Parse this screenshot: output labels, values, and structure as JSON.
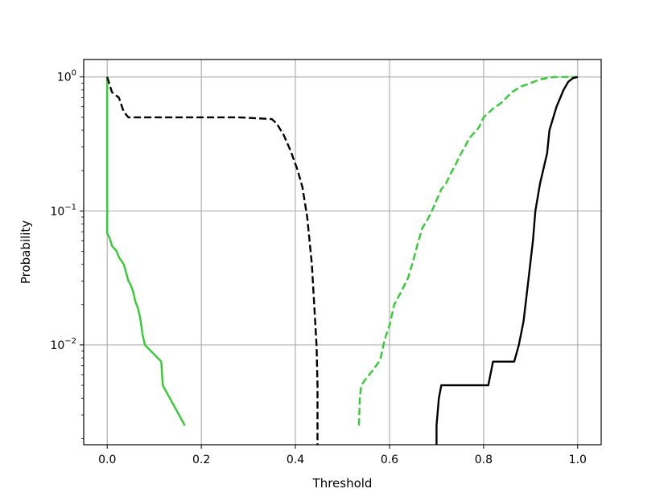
{
  "chart_data": {
    "type": "line",
    "title": "",
    "xlabel": "Threshold",
    "ylabel": "Probability",
    "xlim": [
      -0.05,
      1.05
    ],
    "ylim": [
      0.0018,
      1.35
    ],
    "yscale": "log",
    "grid": true,
    "legend": "none",
    "x_ticks": [
      {
        "value": 0.0,
        "label": "0.0"
      },
      {
        "value": 0.2,
        "label": "0.2"
      },
      {
        "value": 0.4,
        "label": "0.4"
      },
      {
        "value": 0.6,
        "label": "0.6"
      },
      {
        "value": 0.8,
        "label": "0.8"
      },
      {
        "value": 1.0,
        "label": "1.0"
      }
    ],
    "y_ticks": [
      {
        "value": 1,
        "base": "10",
        "exp": "0"
      },
      {
        "value": 0.1,
        "base": "10",
        "exp": "−1"
      },
      {
        "value": 0.01,
        "base": "10",
        "exp": "−2"
      }
    ],
    "series": [
      {
        "color": "#33cc33",
        "style": "solid",
        "points": [
          [
            0.0,
            1.0
          ],
          [
            0.0,
            0.068
          ],
          [
            0.005,
            0.063
          ],
          [
            0.01,
            0.055
          ],
          [
            0.02,
            0.05
          ],
          [
            0.025,
            0.045
          ],
          [
            0.035,
            0.04
          ],
          [
            0.04,
            0.035
          ],
          [
            0.045,
            0.03
          ],
          [
            0.05,
            0.028
          ],
          [
            0.055,
            0.025
          ],
          [
            0.06,
            0.021
          ],
          [
            0.065,
            0.019
          ],
          [
            0.07,
            0.016
          ],
          [
            0.075,
            0.012
          ],
          [
            0.08,
            0.01
          ],
          [
            0.115,
            0.0075
          ],
          [
            0.118,
            0.005
          ],
          [
            0.165,
            0.0025
          ]
        ]
      },
      {
        "color": "#000000",
        "style": "dashed",
        "points": [
          [
            0.0,
            1.0
          ],
          [
            0.01,
            0.77
          ],
          [
            0.025,
            0.7
          ],
          [
            0.035,
            0.55
          ],
          [
            0.045,
            0.5
          ],
          [
            0.1,
            0.5
          ],
          [
            0.2,
            0.5
          ],
          [
            0.28,
            0.5
          ],
          [
            0.35,
            0.485
          ],
          [
            0.36,
            0.45
          ],
          [
            0.375,
            0.37
          ],
          [
            0.39,
            0.28
          ],
          [
            0.405,
            0.2
          ],
          [
            0.415,
            0.15
          ],
          [
            0.425,
            0.09
          ],
          [
            0.435,
            0.04
          ],
          [
            0.44,
            0.02
          ],
          [
            0.445,
            0.01
          ],
          [
            0.447,
            0.005
          ],
          [
            0.447,
            0.0018
          ]
        ]
      },
      {
        "color": "#33cc33",
        "style": "dashed",
        "points": [
          [
            0.535,
            0.0025
          ],
          [
            0.537,
            0.004
          ],
          [
            0.54,
            0.005
          ],
          [
            0.55,
            0.0056
          ],
          [
            0.565,
            0.0065
          ],
          [
            0.58,
            0.0077
          ],
          [
            0.59,
            0.011
          ],
          [
            0.6,
            0.014
          ],
          [
            0.61,
            0.02
          ],
          [
            0.625,
            0.025
          ],
          [
            0.64,
            0.032
          ],
          [
            0.65,
            0.042
          ],
          [
            0.66,
            0.057
          ],
          [
            0.67,
            0.075
          ],
          [
            0.68,
            0.085
          ],
          [
            0.69,
            0.1
          ],
          [
            0.7,
            0.12
          ],
          [
            0.71,
            0.145
          ],
          [
            0.72,
            0.16
          ],
          [
            0.73,
            0.19
          ],
          [
            0.74,
            0.22
          ],
          [
            0.75,
            0.26
          ],
          [
            0.76,
            0.3
          ],
          [
            0.77,
            0.35
          ],
          [
            0.79,
            0.42
          ],
          [
            0.8,
            0.5
          ],
          [
            0.82,
            0.58
          ],
          [
            0.84,
            0.65
          ],
          [
            0.86,
            0.77
          ],
          [
            0.88,
            0.85
          ],
          [
            0.9,
            0.9
          ],
          [
            0.92,
            0.96
          ],
          [
            0.95,
            1.0
          ],
          [
            1.0,
            1.0
          ]
        ]
      },
      {
        "color": "#000000",
        "style": "solid",
        "points": [
          [
            0.7,
            0.0018
          ],
          [
            0.7,
            0.0025
          ],
          [
            0.705,
            0.004
          ],
          [
            0.71,
            0.005
          ],
          [
            0.81,
            0.005
          ],
          [
            0.82,
            0.0075
          ],
          [
            0.865,
            0.0075
          ],
          [
            0.875,
            0.01
          ],
          [
            0.885,
            0.015
          ],
          [
            0.895,
            0.03
          ],
          [
            0.905,
            0.06
          ],
          [
            0.91,
            0.1
          ],
          [
            0.92,
            0.16
          ],
          [
            0.935,
            0.27
          ],
          [
            0.94,
            0.4
          ],
          [
            0.955,
            0.6
          ],
          [
            0.97,
            0.8
          ],
          [
            0.98,
            0.92
          ],
          [
            0.99,
            0.98
          ],
          [
            1.0,
            1.0
          ]
        ]
      }
    ]
  }
}
